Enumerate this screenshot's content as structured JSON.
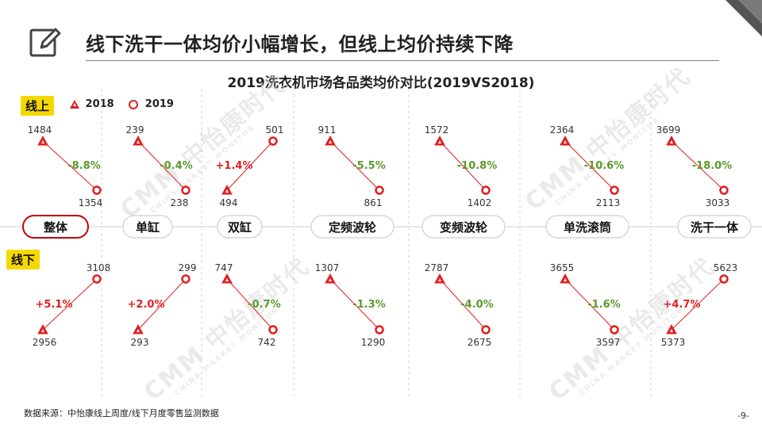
{
  "header": {
    "title": "线下洗干一体均价小幅增长，但线上均价持续下降",
    "chart_title": "2019洗衣机市场各品类均价对比(2019VS2018)"
  },
  "labels": {
    "online": "线上",
    "offline": "线下"
  },
  "legend": {
    "items": [
      {
        "label": "2018",
        "marker": "triangle"
      },
      {
        "label": "2019",
        "marker": "circle"
      }
    ]
  },
  "watermark": {
    "text": "中怡康时代",
    "subtext": "CHINA MARKET MONITOR",
    "logo": "CMM"
  },
  "footer": {
    "source": "数据来源：中怡康线上周度/线下月度零售监测数据",
    "page": "-9-"
  },
  "colors": {
    "marker": "#e02020",
    "up_change": "#e02020",
    "down_change": "#5a9a2a",
    "badge": "#f5d800"
  },
  "chart_data": {
    "type": "slope",
    "categories": [
      "整体",
      "单缸",
      "双缸",
      "定频波轮",
      "变频波轮",
      "单洗滚筒",
      "洗干一体"
    ],
    "series": [
      {
        "name": "线上",
        "values_2018": [
          1484,
          239,
          494,
          911,
          1572,
          2364,
          3699
        ],
        "values_2019": [
          1354,
          238,
          501,
          861,
          1402,
          2113,
          3033
        ],
        "change": [
          "-8.8%",
          "-0.4%",
          "+1.4%",
          "-5.5%",
          "-10.8%",
          "-10.6%",
          "-18.0%"
        ]
      },
      {
        "name": "线下",
        "values_2018": [
          2956,
          293,
          747,
          1307,
          2787,
          3655,
          5373
        ],
        "values_2019": [
          3108,
          299,
          742,
          1290,
          2675,
          3597,
          5623
        ],
        "change": [
          "+5.1%",
          "+2.0%",
          "-0.7%",
          "-1.3%",
          "-4.0%",
          "-1.6%",
          "+4.7%"
        ]
      }
    ],
    "legend": [
      "2018",
      "2019"
    ],
    "legend_position": "top-left"
  }
}
